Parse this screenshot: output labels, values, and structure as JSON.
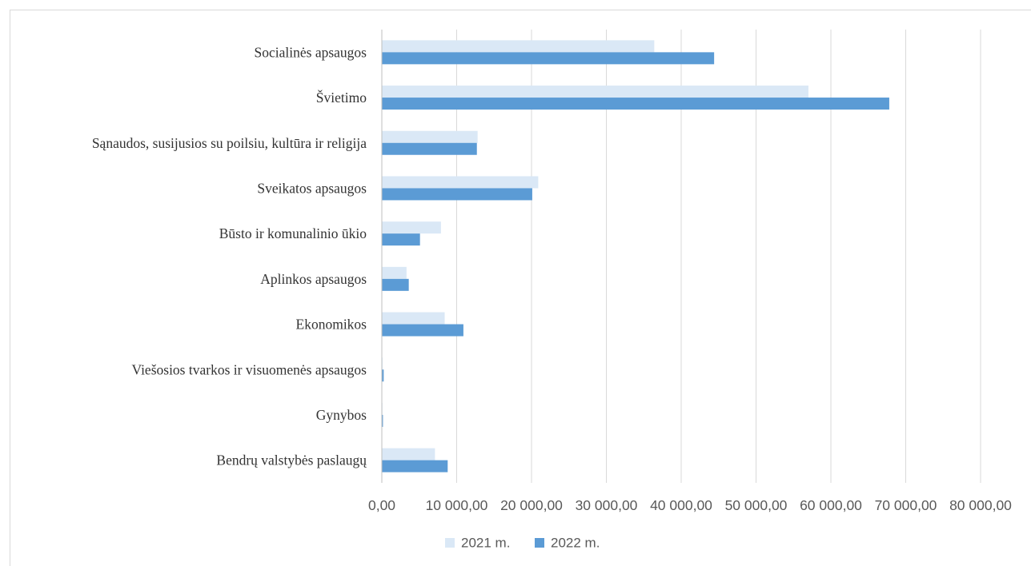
{
  "chart_data": {
    "type": "bar",
    "orientation": "horizontal",
    "title": "",
    "xlabel": "",
    "ylabel": "",
    "categories": [
      "Socialinės apsaugos",
      "Švietimo",
      "Sąnaudos, susijusios su poilsiu, kultūra ir religija",
      "Sveikatos apsaugos",
      "Būsto ir komunalinio ūkio",
      "Aplinkos apsaugos",
      "Ekonomikos",
      "Viešosios tvarkos ir visuomenės apsaugos",
      "Gynybos",
      "Bendrų valstybės paslaugų"
    ],
    "series": [
      {
        "name": "2021 m.",
        "color": "#dae8f6",
        "values": [
          36400,
          57000,
          12800,
          20900,
          7900,
          3300,
          8400,
          100,
          50,
          7100
        ]
      },
      {
        "name": "2022 m.",
        "color": "#5b9bd5",
        "values": [
          44400,
          67800,
          12700,
          20100,
          5100,
          3600,
          10900,
          250,
          150,
          8800
        ]
      }
    ],
    "xlim": [
      0,
      80000
    ],
    "x_ticks": [
      0,
      10000,
      20000,
      30000,
      40000,
      50000,
      60000,
      70000,
      80000
    ],
    "x_tick_labels": [
      "0,00",
      "10 000,00",
      "20 000,00",
      "30 000,00",
      "40 000,00",
      "50 000,00",
      "60 000,00",
      "70 000,00",
      "80 000,00"
    ],
    "grid": "vertical",
    "legend_position": "bottom"
  }
}
